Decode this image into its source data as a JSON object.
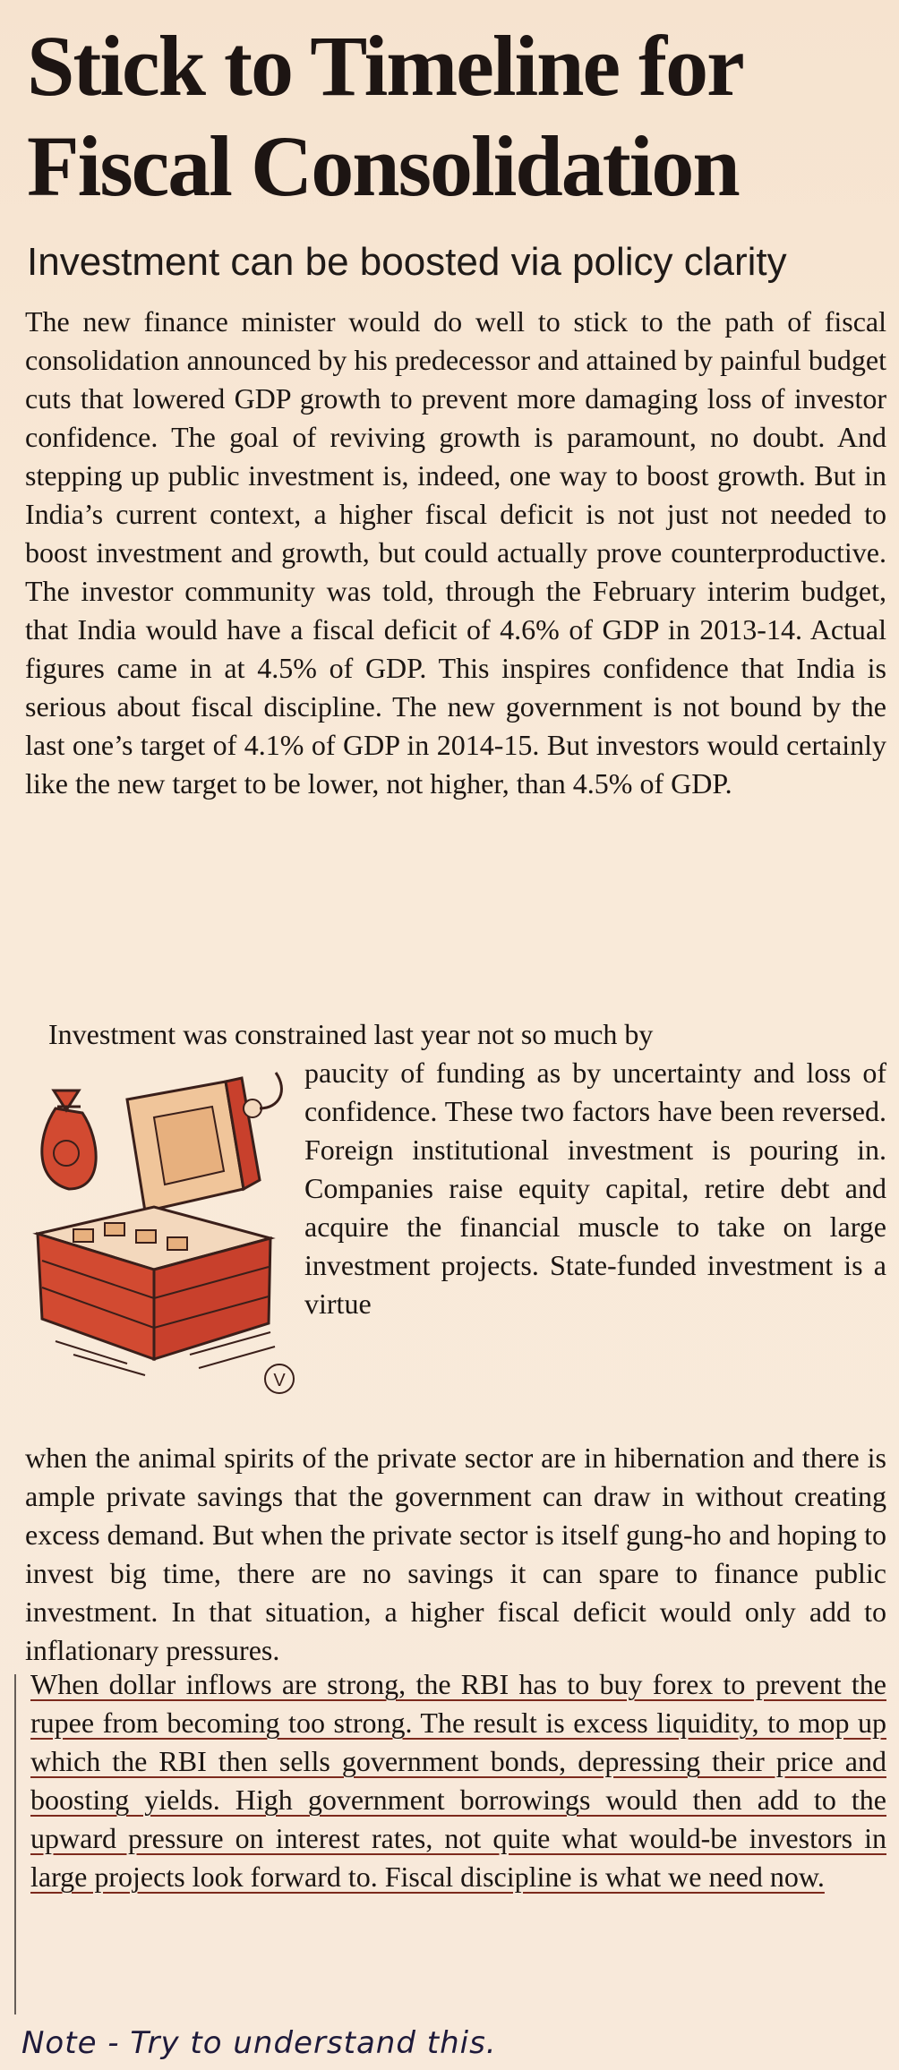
{
  "article": {
    "headline": "Stick to Timeline for Fiscal Consolidation",
    "subheadline": "Investment can be boosted via policy clarity",
    "paragraph_1": "The new finance minister would do well to stick to the path of fiscal consolidation announced by his predecessor and attained by painful budget cuts that lowered GDP growth to prevent more damaging loss of investor confidence. The goal of reviving growth is paramount, no doubt. And stepping up public investment is, indeed, one way to boost growth. But in India’s current context, a higher fiscal deficit is not just not needed to boost investment and growth, but could actually prove counterproductive. The investor community was told, through the February interim budget, that India would have a fiscal deficit of 4.6% of GDP in 2013-14. Actual figures came in at 4.5% of GDP. This inspires confidence that India is serious about fiscal discipline. The new government is not bound by the last one’s target of 4.1% of GDP in 2014-15. But investors would certainly like the new target to be lower, not higher, than 4.5% of GDP.",
    "paragraph_2_lead": "Investment was constrained last year not so much by",
    "paragraph_2_wrap": "paucity of funding as by uncertainty and loss of confidence. These two factors have been reversed. Foreign institutional investment is pouring in. Companies raise equity capital, retire debt and acquire the financial muscle to take on large investment projects. State-funded investment is a virtue",
    "paragraph_2_rest": "when the animal spirits of the private sector are in hibernation and there is ample private savings that the government can draw in without creating excess demand. But when the private sector is itself gung-ho and hoping to invest big time, there are no savings it can spare to finance public investment. In that situation, a higher fiscal deficit would only add to inflationary pressures.",
    "paragraph_3": "When dollar inflows are strong, the RBI has to buy forex to prevent the rupee from becoming too strong. The result is excess liquidity, to mop up which the RBI then sells government bonds, depressing their price and boosting yields. High government borrowings would then add to the upward pressure on interest rates, not quite what would-be investors in large projects look forward to. Fiscal discipline is what we need now.",
    "illustrator_mark": "V"
  },
  "handwritten_note": "Note - Try to understand this.",
  "colors": {
    "paper": "#f7e6d4",
    "ink": "#1b1512",
    "underline_ink": "#7c2a1d",
    "pen_ink": "#1e1a3a",
    "illustration_red": "#c8402c"
  }
}
